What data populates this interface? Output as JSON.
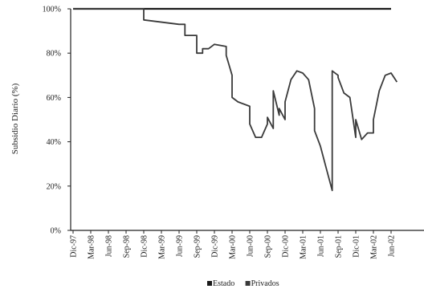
{
  "chart_data": {
    "type": "line",
    "ylabel": "Subsidio Diario (%)",
    "xlabel": "",
    "title": "",
    "ylim": [
      0,
      100
    ],
    "y_ticks": [
      "0%",
      "20%",
      "40%",
      "60%",
      "80%",
      "100%"
    ],
    "x_ticks": [
      "Dic-97",
      "Mar-98",
      "Jun-98",
      "Sep-98",
      "Dic-98",
      "Mar-99",
      "Jun-99",
      "Sep-99",
      "Dic-99",
      "Mar-00",
      "Jun-00",
      "Sep-00",
      "Dic-00",
      "Mar-01",
      "Jun-01",
      "Sep-01",
      "Dic-01",
      "Mar-02",
      "Jun-02"
    ],
    "legend_position": "bottom-center",
    "grid": false,
    "series": [
      {
        "name": "Estado",
        "color": "#1a1a1a",
        "x": [
          "Dic-97",
          "Jun-02"
        ],
        "values": [
          100,
          100
        ]
      },
      {
        "name": "Privados",
        "color": "#3a3a3a",
        "x": [
          "Dic-97",
          "Dic-98",
          "Dic-98",
          "Jun-99",
          "Jul-99",
          "Jul-99",
          "Sep-99",
          "Sep-99",
          "Oct-99",
          "Oct-99",
          "Nov-99",
          "Dic-99",
          "Feb-00",
          "Feb-00",
          "Mar-00",
          "Mar-00",
          "Apr-00",
          "Jun-00",
          "Jun-00",
          "Jul-00",
          "Aug-00",
          "Sep-00",
          "Sep-00",
          "Oct-00",
          "Oct-00",
          "Nov-00",
          "Nov-00",
          "Dic-00",
          "Dic-00",
          "Ene-01",
          "Feb-01",
          "Mar-01",
          "Apr-01",
          "May-01",
          "May-01",
          "Jun-01",
          "Jul-01",
          "Aug-01",
          "Aug-01",
          "Sep-01",
          "Sep-01",
          "Oct-01",
          "Nov-01",
          "Dic-01",
          "Dic-01",
          "Ene-02",
          "Feb-02",
          "Mar-02",
          "Mar-02",
          "Apr-02",
          "May-02",
          "Jun-02",
          "Jul-02"
        ],
        "values": [
          100,
          100,
          95,
          93,
          93,
          88,
          88,
          80,
          80,
          82,
          82,
          84,
          83,
          79,
          70,
          60,
          58,
          56,
          48,
          42,
          42,
          48,
          51,
          46,
          63,
          52,
          55,
          50,
          58,
          68,
          72,
          71,
          68,
          55,
          45,
          38,
          28,
          18,
          72,
          70,
          69,
          62,
          60,
          42,
          50,
          41,
          44,
          44,
          50,
          63,
          70,
          71,
          67
        ]
      }
    ]
  }
}
